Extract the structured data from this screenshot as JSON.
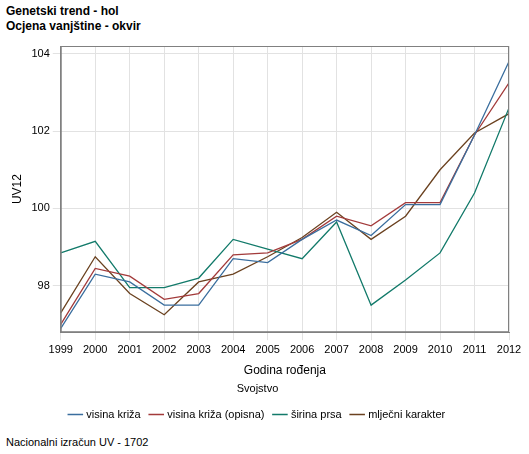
{
  "chart_data": {
    "type": "line",
    "title": "Genetski trend - hol",
    "subtitle": "Ocjena vanjštine - okvir",
    "x_label": "Godina rođenja",
    "y_label": "UV12",
    "legend_title": "Svojstvo",
    "footnote": "Nacionalni izračun UV - 1702",
    "x": [
      1999,
      2000,
      2001,
      2002,
      2003,
      2004,
      2005,
      2006,
      2007,
      2008,
      2009,
      2010,
      2011,
      2012
    ],
    "xlim": [
      1999,
      2012
    ],
    "xticks": [
      1999,
      2000,
      2001,
      2002,
      2003,
      2004,
      2005,
      2006,
      2007,
      2008,
      2009,
      2010,
      2011,
      2012
    ],
    "ylim": [
      96.8,
      104.2
    ],
    "yticks": [
      98,
      100,
      102,
      104
    ],
    "grid": true,
    "legend": "bottom",
    "series": [
      {
        "name": "visina križa",
        "color": "#3a6e9e",
        "values": [
          96.9,
          98.3,
          98.1,
          97.5,
          97.5,
          98.7,
          98.6,
          99.2,
          99.7,
          99.3,
          100.1,
          100.1,
          101.9,
          103.8
        ]
      },
      {
        "name": "visina križa (opisna)",
        "color": "#a33b3b",
        "values": [
          97.0,
          98.45,
          98.25,
          97.65,
          97.8,
          98.8,
          98.85,
          99.2,
          99.8,
          99.55,
          100.15,
          100.15,
          101.9,
          103.25
        ]
      },
      {
        "name": "širina prsa",
        "color": "#127a6a",
        "values": [
          98.85,
          99.15,
          97.95,
          97.95,
          98.2,
          99.2,
          98.95,
          98.7,
          99.65,
          97.5,
          98.15,
          98.85,
          100.4,
          102.6
        ]
      },
      {
        "name": "mlječni karakter",
        "color": "#6b4220",
        "values": [
          97.3,
          98.75,
          97.8,
          97.25,
          98.1,
          98.3,
          98.75,
          99.25,
          99.9,
          99.2,
          99.8,
          101.0,
          101.95,
          102.45
        ]
      }
    ]
  }
}
